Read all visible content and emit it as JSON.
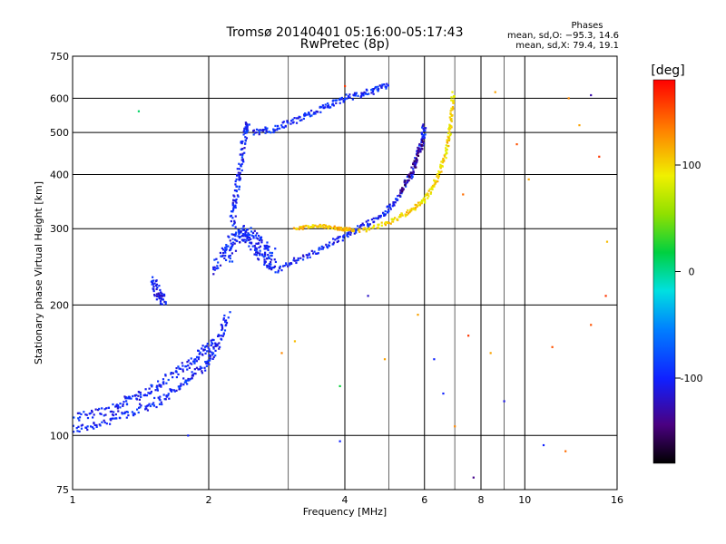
{
  "header": {
    "title_line1": "Tromsø 20140401 05:16:00-05:17:43",
    "title_line2": "RwPretec (8p)",
    "stats_title": "Phases",
    "stats_o": "mean, sd,O: −95.3, 14.6",
    "stats_x": "mean, sd,X:  79.4, 19.1"
  },
  "colorbar": {
    "unit": "[deg]",
    "ticks": [
      {
        "value": 100,
        "label": "100"
      },
      {
        "value": 0,
        "label": "0"
      },
      {
        "value": -100,
        "label": "-100"
      }
    ],
    "range": [
      -180,
      180
    ]
  },
  "chart_data": {
    "type": "scatter",
    "title": "Tromsø 20140401 05:16:00-05:17:43",
    "subtitle": "RwPretec (8p)",
    "xlabel": "Frequency [MHz]",
    "ylabel": "Stationary phase Virtual Height [km]",
    "xscale": "log",
    "yscale": "log",
    "xlim": [
      1,
      16
    ],
    "ylim": [
      75,
      750
    ],
    "xticks": [
      1,
      2,
      4,
      6,
      8,
      10,
      16
    ],
    "xtick_labels": [
      "1",
      "2",
      "4",
      "6",
      "8",
      "10",
      "16"
    ],
    "x_minor": [
      3,
      5,
      7,
      9
    ],
    "yticks": [
      75,
      100,
      200,
      300,
      400,
      500,
      600,
      750
    ],
    "ytick_labels": [
      "75",
      "100",
      "200",
      "300",
      "400",
      "500",
      "600",
      "750"
    ],
    "grid": true,
    "colorscale": "rainbow phase, -180 to 180 deg",
    "traces": [
      {
        "phase": -100,
        "spread": 0.03,
        "points": [
          [
            1.0,
            103
          ],
          [
            1.2,
            108
          ],
          [
            1.4,
            115
          ],
          [
            1.6,
            122
          ],
          [
            1.8,
            135
          ],
          [
            2.0,
            148
          ],
          [
            2.1,
            165
          ],
          [
            2.2,
            190
          ]
        ]
      },
      {
        "phase": -100,
        "spread": 0.03,
        "points": [
          [
            1.0,
            110
          ],
          [
            1.2,
            114
          ],
          [
            1.35,
            122
          ],
          [
            1.5,
            128
          ],
          [
            1.7,
            140
          ],
          [
            1.9,
            152
          ],
          [
            2.05,
            165
          ]
        ]
      },
      {
        "phase": -105,
        "spread": 0.03,
        "points": [
          [
            1.5,
            230
          ],
          [
            1.55,
            210
          ],
          [
            1.6,
            205
          ]
        ]
      },
      {
        "phase": -100,
        "spread": 0.035,
        "points": [
          [
            2.05,
            240
          ],
          [
            2.2,
            275
          ],
          [
            2.35,
            300
          ],
          [
            2.5,
            275
          ],
          [
            2.65,
            255
          ],
          [
            2.8,
            245
          ]
        ]
      },
      {
        "phase": -100,
        "spread": 0.035,
        "points": [
          [
            2.2,
            250
          ],
          [
            2.4,
            300
          ],
          [
            2.6,
            280
          ],
          [
            2.8,
            260
          ]
        ]
      },
      {
        "phase": -100,
        "spread": 0.025,
        "points": [
          [
            2.25,
            310
          ],
          [
            2.3,
            360
          ],
          [
            2.35,
            420
          ],
          [
            2.4,
            500
          ],
          [
            2.45,
            520
          ]
        ]
      },
      {
        "phase": -100,
        "spread": 0.02,
        "points": [
          [
            2.5,
            500
          ],
          [
            2.8,
            510
          ],
          [
            3.2,
            540
          ],
          [
            3.6,
            570
          ],
          [
            4.0,
            600
          ],
          [
            4.5,
            620
          ],
          [
            5.0,
            640
          ]
        ]
      },
      {
        "phase": -100,
        "spread": 0.02,
        "points": [
          [
            2.8,
            240
          ],
          [
            3.3,
            260
          ],
          [
            3.8,
            280
          ],
          [
            4.3,
            300
          ],
          [
            4.8,
            320
          ],
          [
            5.2,
            350
          ],
          [
            5.6,
            400
          ],
          [
            5.9,
            470
          ],
          [
            6.0,
            520
          ]
        ]
      },
      {
        "phase": 100,
        "spread": 0.015,
        "points": [
          [
            4.3,
            295
          ],
          [
            5.0,
            310
          ],
          [
            5.6,
            330
          ],
          [
            6.0,
            350
          ],
          [
            6.4,
            390
          ],
          [
            6.7,
            450
          ],
          [
            6.85,
            520
          ],
          [
            6.95,
            620
          ]
        ]
      },
      {
        "phase": 110,
        "spread": 0.01,
        "points": [
          [
            3.1,
            300
          ],
          [
            3.5,
            305
          ],
          [
            3.9,
            300
          ],
          [
            4.2,
            298
          ]
        ]
      },
      {
        "phase": -140,
        "spread": 0.02,
        "points": [
          [
            5.3,
            360
          ],
          [
            5.7,
            420
          ],
          [
            5.95,
            480
          ]
        ]
      }
    ],
    "scatter": [
      {
        "x": 1.4,
        "y": 560,
        "phase": 10
      },
      {
        "x": 1.8,
        "y": 100,
        "phase": -100
      },
      {
        "x": 3.1,
        "y": 165,
        "phase": 110
      },
      {
        "x": 2.9,
        "y": 155,
        "phase": 130
      },
      {
        "x": 3.9,
        "y": 130,
        "phase": 20
      },
      {
        "x": 3.9,
        "y": 97,
        "phase": -100
      },
      {
        "x": 4.0,
        "y": 640,
        "phase": 160
      },
      {
        "x": 4.5,
        "y": 210,
        "phase": -120
      },
      {
        "x": 4.9,
        "y": 150,
        "phase": 120
      },
      {
        "x": 5.8,
        "y": 190,
        "phase": 120
      },
      {
        "x": 6.3,
        "y": 150,
        "phase": -100
      },
      {
        "x": 6.6,
        "y": 125,
        "phase": -100
      },
      {
        "x": 7.0,
        "y": 105,
        "phase": 130
      },
      {
        "x": 7.3,
        "y": 360,
        "phase": 140
      },
      {
        "x": 7.5,
        "y": 170,
        "phase": 160
      },
      {
        "x": 7.7,
        "y": 80,
        "phase": -140
      },
      {
        "x": 8.4,
        "y": 155,
        "phase": 120
      },
      {
        "x": 8.6,
        "y": 620,
        "phase": 120
      },
      {
        "x": 9.0,
        "y": 120,
        "phase": -110
      },
      {
        "x": 9.6,
        "y": 470,
        "phase": 150
      },
      {
        "x": 10.2,
        "y": 390,
        "phase": 120
      },
      {
        "x": 11.0,
        "y": 95,
        "phase": -100
      },
      {
        "x": 11.5,
        "y": 160,
        "phase": 150
      },
      {
        "x": 12.3,
        "y": 92,
        "phase": 140
      },
      {
        "x": 12.5,
        "y": 600,
        "phase": 130
      },
      {
        "x": 13.2,
        "y": 520,
        "phase": 120
      },
      {
        "x": 14.0,
        "y": 610,
        "phase": -130
      },
      {
        "x": 14.0,
        "y": 180,
        "phase": 150
      },
      {
        "x": 14.6,
        "y": 440,
        "phase": 160
      },
      {
        "x": 15.2,
        "y": 280,
        "phase": 110
      },
      {
        "x": 15.1,
        "y": 210,
        "phase": 160
      }
    ]
  }
}
